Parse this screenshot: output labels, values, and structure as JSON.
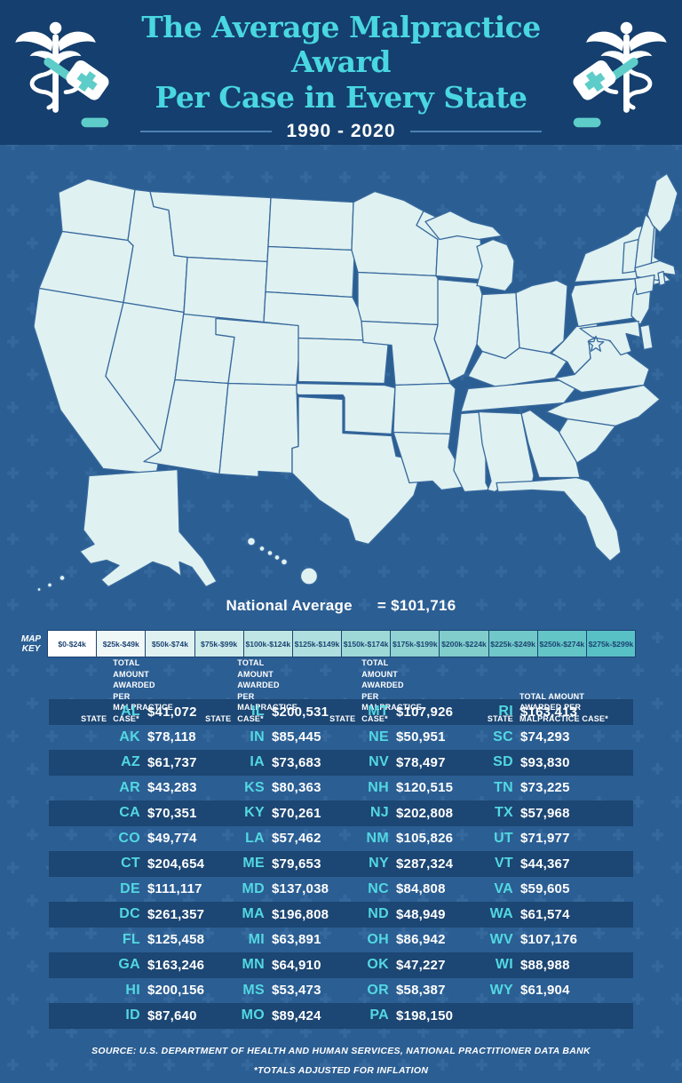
{
  "header": {
    "title_line1": "The Average Malpractice Award",
    "title_line2": "Per Case in Every State",
    "subtitle": "1990 - 2020"
  },
  "national_average": {
    "label": "National Average",
    "value": "= $101,716"
  },
  "map_key": {
    "label_line1": "MAP",
    "label_line2": "KEY",
    "buckets": [
      {
        "label": "$0-$24k",
        "color": "#ffffff"
      },
      {
        "label": "$25k-$49k",
        "color": "#f0f8f7"
      },
      {
        "label": "$50k-$74k",
        "color": "#dff1f1"
      },
      {
        "label": "$75k-$99k",
        "color": "#cfebea"
      },
      {
        "label": "$100k-$124k",
        "color": "#bfe5e4"
      },
      {
        "label": "$125k-$149k",
        "color": "#afdfde"
      },
      {
        "label": "$150k-$174k",
        "color": "#9fd9d7"
      },
      {
        "label": "$175k-$199k",
        "color": "#90d3d2"
      },
      {
        "label": "$200k-$224k",
        "color": "#80cdcc"
      },
      {
        "label": "$225k-$249k",
        "color": "#71c8c8"
      },
      {
        "label": "$250k-$274k",
        "color": "#64c5c7"
      },
      {
        "label": "$275k-$299k",
        "color": "#58c1c6"
      }
    ]
  },
  "table": {
    "state_header": "STATE",
    "amount_header_lines": [
      "TOTAL AMOUNT",
      "AWARDED PER",
      "MALPRACTICE CASE*"
    ],
    "column_sizes": [
      13,
      13,
      13,
      12
    ]
  },
  "source": {
    "line1": "SOURCE:  U.S. DEPARTMENT OF HEALTH AND HUMAN SERVICES, NATIONAL PRACTITIONER DATA BANK",
    "line2": "*TOTALS ADJUSTED FOR INFLATION"
  },
  "chart_data": {
    "type": "choropleth",
    "title": "The Average Malpractice Award Per Case in Every State",
    "period": "1990 - 2020",
    "unit": "USD",
    "national_average": 101716,
    "bucket_size": 25000,
    "states": [
      {
        "code": "AL",
        "value": 41072
      },
      {
        "code": "AK",
        "value": 78118
      },
      {
        "code": "AZ",
        "value": 61737
      },
      {
        "code": "AR",
        "value": 43283
      },
      {
        "code": "CA",
        "value": 70351
      },
      {
        "code": "CO",
        "value": 49774
      },
      {
        "code": "CT",
        "value": 204654
      },
      {
        "code": "DE",
        "value": 111117
      },
      {
        "code": "DC",
        "value": 261357
      },
      {
        "code": "FL",
        "value": 125458
      },
      {
        "code": "GA",
        "value": 163246
      },
      {
        "code": "HI",
        "value": 200156
      },
      {
        "code": "ID",
        "value": 87640
      },
      {
        "code": "IL",
        "value": 200531
      },
      {
        "code": "IN",
        "value": 85445
      },
      {
        "code": "IA",
        "value": 73683
      },
      {
        "code": "KS",
        "value": 80363
      },
      {
        "code": "KY",
        "value": 70261
      },
      {
        "code": "LA",
        "value": 57462
      },
      {
        "code": "ME",
        "value": 79653
      },
      {
        "code": "MD",
        "value": 137038
      },
      {
        "code": "MA",
        "value": 196808
      },
      {
        "code": "MI",
        "value": 63891
      },
      {
        "code": "MN",
        "value": 64910
      },
      {
        "code": "MS",
        "value": 53473
      },
      {
        "code": "MO",
        "value": 89424
      },
      {
        "code": "MT",
        "value": 107926
      },
      {
        "code": "NE",
        "value": 50951
      },
      {
        "code": "NV",
        "value": 78497
      },
      {
        "code": "NH",
        "value": 120515
      },
      {
        "code": "NJ",
        "value": 202808
      },
      {
        "code": "NM",
        "value": 105826
      },
      {
        "code": "NY",
        "value": 287324
      },
      {
        "code": "NC",
        "value": 84808
      },
      {
        "code": "ND",
        "value": 48949
      },
      {
        "code": "OH",
        "value": 86942
      },
      {
        "code": "OK",
        "value": 47227
      },
      {
        "code": "OR",
        "value": 58387
      },
      {
        "code": "PA",
        "value": 198150
      },
      {
        "code": "RI",
        "value": 163413
      },
      {
        "code": "SC",
        "value": 74293
      },
      {
        "code": "SD",
        "value": 93830
      },
      {
        "code": "TN",
        "value": 73225
      },
      {
        "code": "TX",
        "value": 57968
      },
      {
        "code": "UT",
        "value": 71977
      },
      {
        "code": "VT",
        "value": 44367
      },
      {
        "code": "VA",
        "value": 59605
      },
      {
        "code": "WA",
        "value": 61574
      },
      {
        "code": "WV",
        "value": 107176
      },
      {
        "code": "WI",
        "value": 88988
      },
      {
        "code": "WY",
        "value": 61904
      }
    ]
  }
}
